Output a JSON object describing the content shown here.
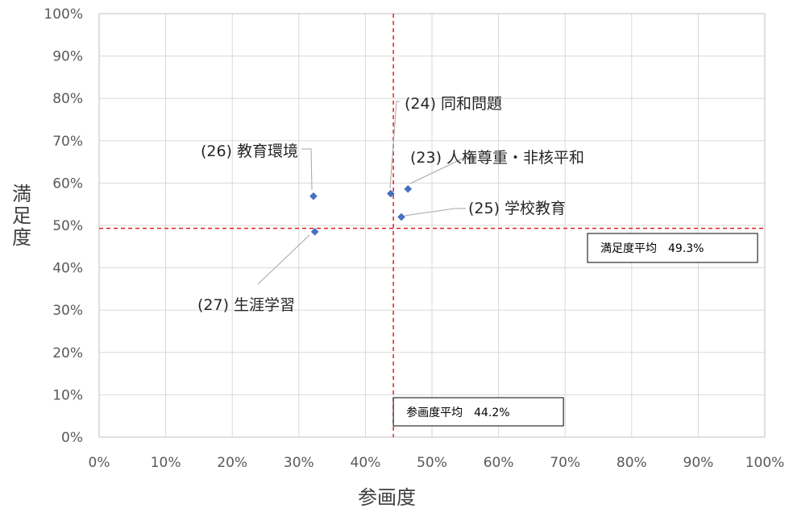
{
  "chart_data": {
    "type": "scatter",
    "xlabel": "参画度",
    "ylabel": "満足度",
    "xlim": [
      0,
      100
    ],
    "ylim": [
      0,
      100
    ],
    "ticks": [
      "0%",
      "10%",
      "20%",
      "30%",
      "40%",
      "50%",
      "60%",
      "70%",
      "80%",
      "90%",
      "100%"
    ],
    "grid": true,
    "points": [
      {
        "label": "(23) 人権尊重・非核平和",
        "x": 46.4,
        "y": 58.6
      },
      {
        "label": "(24) 同和問題",
        "x": 43.8,
        "y": 57.5
      },
      {
        "label": "(25) 学校教育",
        "x": 45.4,
        "y": 52.0
      },
      {
        "label": "(26) 教育環境",
        "x": 32.2,
        "y": 56.9
      },
      {
        "label": "(27) 生涯学習",
        "x": 32.4,
        "y": 48.5
      }
    ],
    "reference_lines": [
      {
        "axis": "x",
        "value": 44.2,
        "label": "参画度平均　44.2%"
      },
      {
        "axis": "y",
        "value": 49.3,
        "label": "満足度平均　49.3%"
      }
    ],
    "colors": {
      "marker": "#4472C4",
      "reference": "#E02020",
      "grid": "#D9D9D9"
    }
  }
}
